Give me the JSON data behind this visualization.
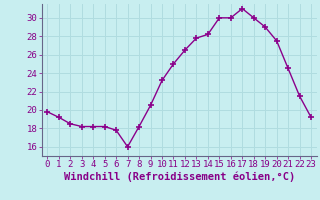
{
  "x": [
    0,
    1,
    2,
    3,
    4,
    5,
    6,
    7,
    8,
    9,
    10,
    11,
    12,
    13,
    14,
    15,
    16,
    17,
    18,
    19,
    20,
    21,
    22,
    23
  ],
  "y": [
    19.8,
    19.2,
    18.5,
    18.2,
    18.2,
    18.2,
    17.8,
    16.0,
    18.2,
    20.5,
    23.2,
    25.0,
    26.5,
    27.8,
    28.2,
    30.0,
    30.0,
    31.0,
    30.0,
    29.0,
    27.5,
    24.5,
    21.5,
    19.2
  ],
  "line_color": "#8b008b",
  "marker": "+",
  "marker_size": 5,
  "marker_lw": 1.2,
  "xlabel": "Windchill (Refroidissement éolien,°C)",
  "xlabel_fontsize": 7.5,
  "ylim": [
    15,
    31.5
  ],
  "xlim": [
    -0.5,
    23.5
  ],
  "yticks": [
    16,
    18,
    20,
    22,
    24,
    26,
    28,
    30
  ],
  "xticks": [
    0,
    1,
    2,
    3,
    4,
    5,
    6,
    7,
    8,
    9,
    10,
    11,
    12,
    13,
    14,
    15,
    16,
    17,
    18,
    19,
    20,
    21,
    22,
    23
  ],
  "bg_color": "#c8eef0",
  "grid_color": "#b0dce0",
  "tick_color": "#880088",
  "tick_fontsize": 6.5,
  "linewidth": 1.0
}
